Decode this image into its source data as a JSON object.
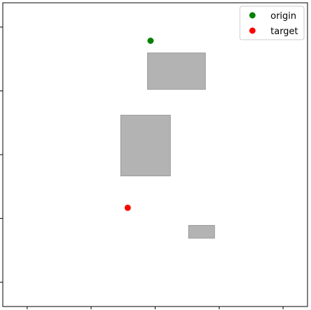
{
  "chart_data": {
    "type": "scatter",
    "title": "",
    "xlabel": "",
    "ylabel": "",
    "xlim": [
      0,
      100
    ],
    "ylim": [
      0,
      100
    ],
    "grid": false,
    "legend_placement": "top-right",
    "x_ticks": [
      8,
      29,
      50,
      71,
      92
    ],
    "y_ticks": [
      8,
      29,
      50,
      71,
      92
    ],
    "series": [
      {
        "name": "origin",
        "color": "#008000",
        "x": [
          48.5
        ],
        "y": [
          87.5
        ]
      },
      {
        "name": "target",
        "color": "#ff0000",
        "x": [
          41
        ],
        "y": [
          32.5
        ]
      }
    ],
    "obstacles": [
      {
        "x0": 47.5,
        "x1": 66.5,
        "y0": 71.5,
        "y1": 83.5,
        "color": "#b3b3b3"
      },
      {
        "x0": 38.7,
        "x1": 55,
        "y0": 43,
        "y1": 63,
        "color": "#b3b3b3"
      },
      {
        "x0": 61,
        "x1": 69.5,
        "y0": 22.5,
        "y1": 26.7,
        "color": "#b3b3b3"
      }
    ]
  }
}
